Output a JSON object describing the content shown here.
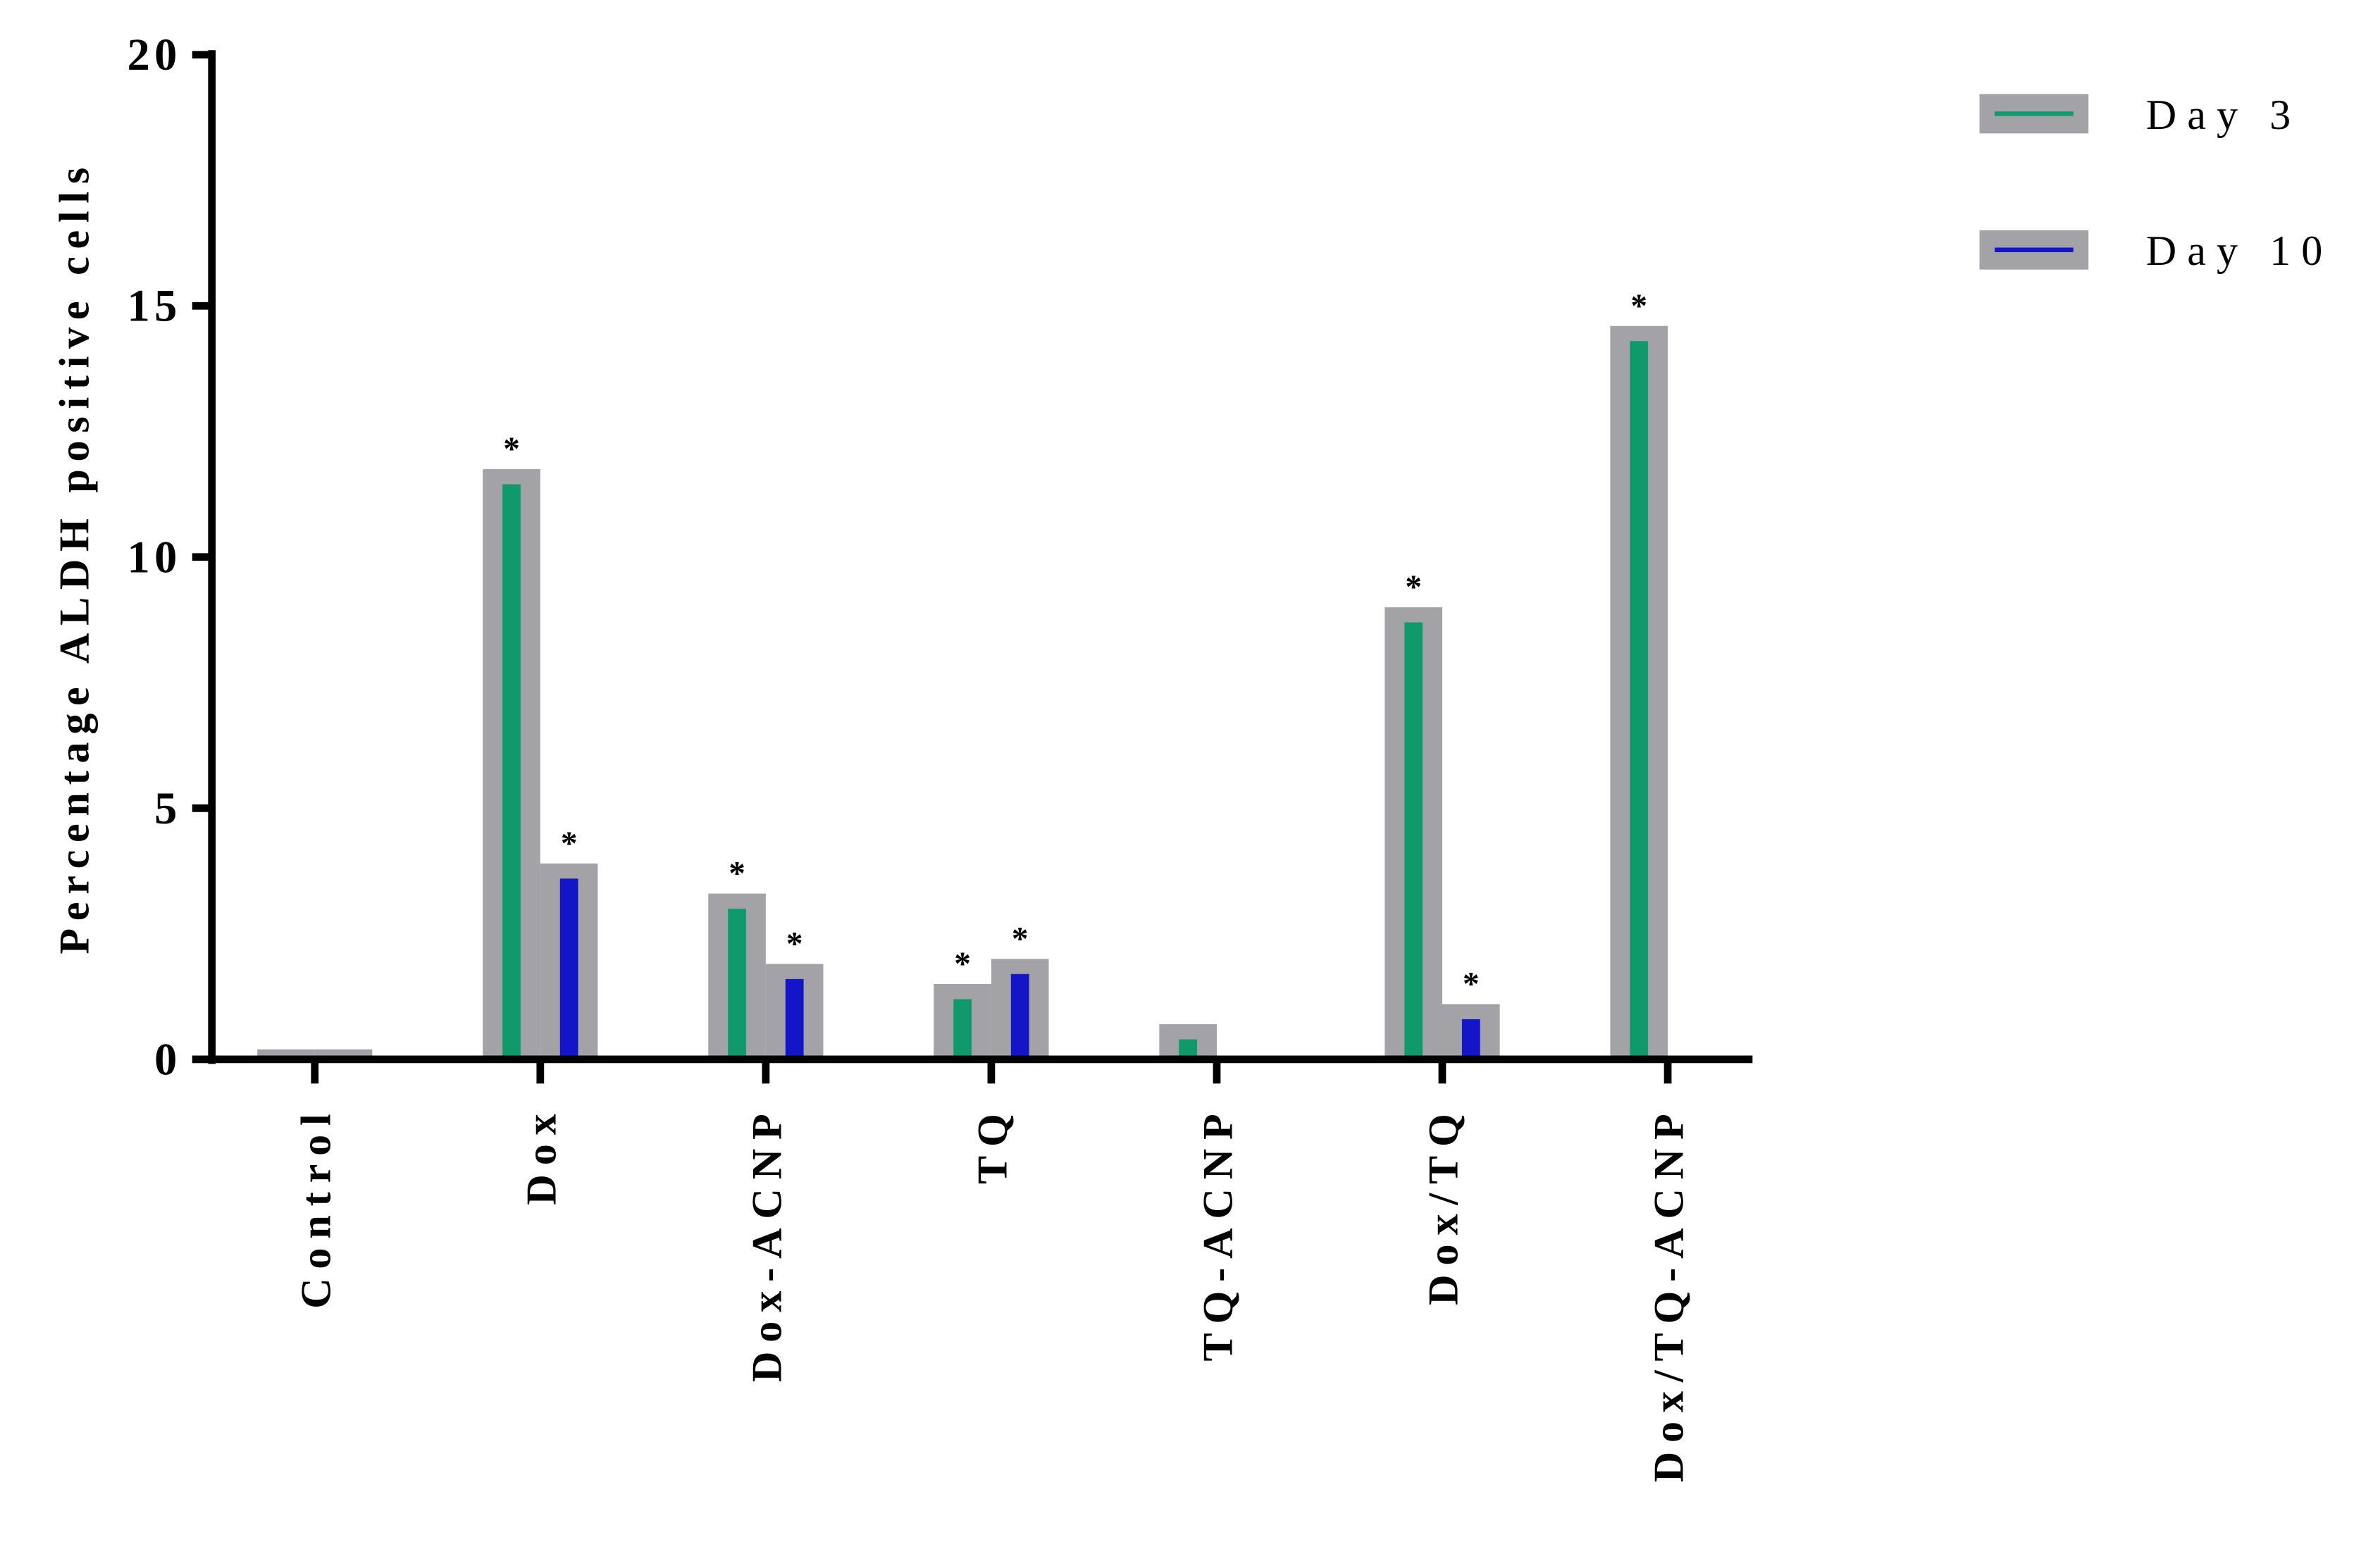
{
  "chart_data": {
    "type": "bar",
    "y_label": "Percentage ALDH positive cells",
    "categories": [
      "Control",
      "Dox",
      "Dox-ACNP",
      "TQ",
      "TQ-ACNP",
      "Dox/TQ",
      "Dox/TQ-ACNP"
    ],
    "series": [
      {
        "name": "Day 3",
        "color": "#109a6c",
        "values": [
          0.2,
          11.75,
          3.3,
          1.5,
          0.7,
          9.0,
          14.6
        ]
      },
      {
        "name": "Day 10",
        "color": "#1414c8",
        "values": [
          0.2,
          3.9,
          1.9,
          2.0,
          0,
          1.1,
          0
        ]
      }
    ],
    "bar_outline_color": "#a3a3a7",
    "annotations": [
      {
        "text": "*",
        "series": 0,
        "category": 1
      },
      {
        "text": "*",
        "series": 1,
        "category": 1
      },
      {
        "text": "*",
        "series": 0,
        "category": 2
      },
      {
        "text": "*",
        "series": 1,
        "category": 2
      },
      {
        "text": "*",
        "series": 0,
        "category": 3
      },
      {
        "text": "*",
        "series": 1,
        "category": 3
      },
      {
        "text": "*",
        "series": 0,
        "category": 5
      },
      {
        "text": "*",
        "series": 1,
        "category": 5
      },
      {
        "text": "*",
        "series": 0,
        "category": 6
      }
    ],
    "ylim": [
      0,
      20
    ],
    "yticks": [
      0,
      5,
      10,
      15,
      20
    ],
    "grid": false,
    "legend": "top-right"
  }
}
